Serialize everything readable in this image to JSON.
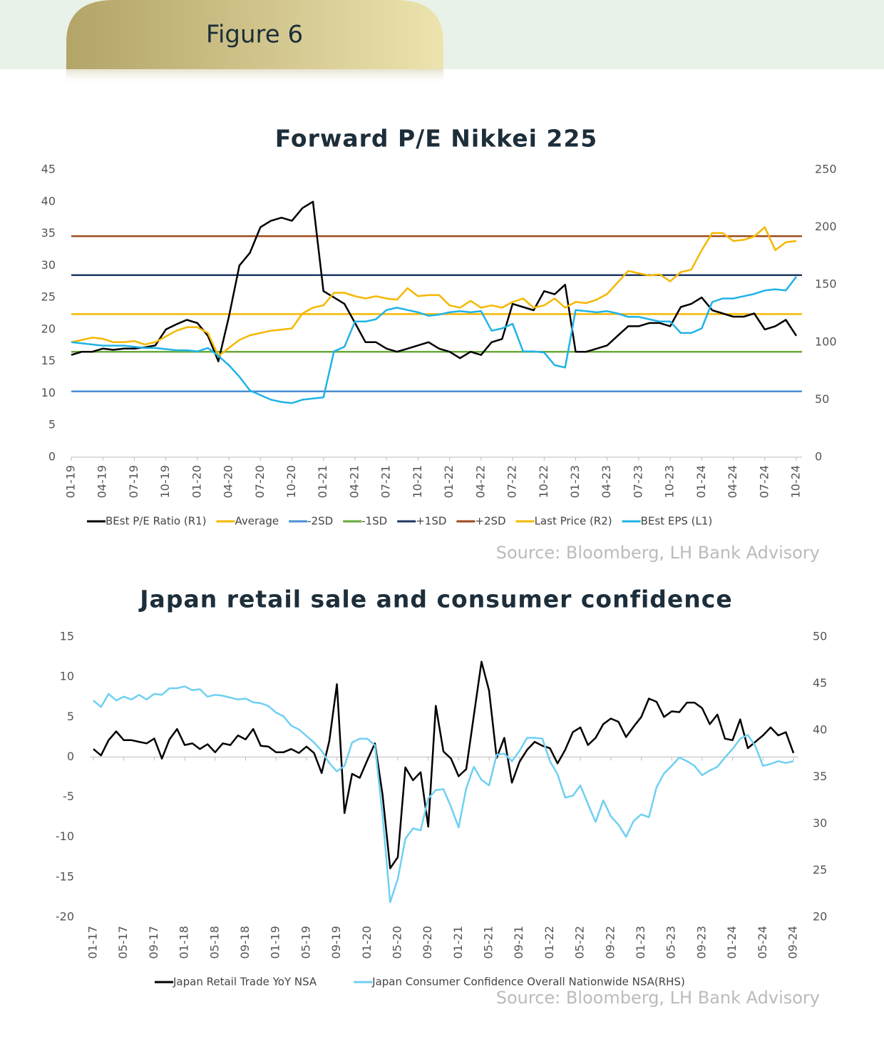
{
  "header": {
    "title": "Figure 6"
  },
  "chart_data": [
    {
      "type": "line",
      "title": "Forward P/E Nikkei 225",
      "source": "Source: Bloomberg,  LH Bank Advisory",
      "categories": [
        "01-19",
        null,
        null,
        "04-19",
        null,
        null,
        "07-19",
        null,
        null,
        "10-19",
        null,
        null,
        "01-20",
        null,
        null,
        "04-20",
        null,
        null,
        "07-20",
        null,
        null,
        "10-20",
        null,
        null,
        "01-21",
        null,
        null,
        "04-21",
        null,
        null,
        "07-21",
        null,
        null,
        "10-21",
        null,
        null,
        "01-22",
        null,
        null,
        "04-22",
        null,
        null,
        "07-22",
        null,
        null,
        "10-22",
        null,
        null,
        "01-23",
        null,
        null,
        "04-23",
        null,
        null,
        "07-23",
        null,
        null,
        "10-23",
        null,
        null,
        "01-24",
        null,
        null,
        "04-24",
        null,
        null,
        "07-24",
        null,
        null,
        "10-24"
      ],
      "ylim": [
        0,
        45
      ],
      "yticks": [
        0,
        5,
        10,
        15,
        20,
        25,
        30,
        35,
        40,
        45
      ],
      "y2lim": [
        0,
        250
      ],
      "y2ticks": [
        0,
        50,
        100,
        150,
        200,
        250
      ],
      "series": [
        {
          "name": "BEst P/E Ratio (R1)",
          "color": "#000000",
          "values": [
            16,
            16.5,
            16.5,
            17,
            16.8,
            17,
            17,
            17.2,
            17.5,
            20,
            20.8,
            21.5,
            21,
            19,
            15,
            22,
            30,
            32,
            36,
            37,
            37.5,
            37,
            39,
            40,
            26,
            25,
            24,
            21,
            18,
            18,
            17,
            16.5,
            17,
            17.5,
            18,
            17,
            16.5,
            15.5,
            16.5,
            16,
            18,
            18.5,
            24,
            23.5,
            23,
            26,
            25.5,
            27,
            16.5,
            16.5,
            17,
            17.5,
            19,
            20.5,
            20.5,
            21,
            21,
            20.5,
            23.5,
            24,
            25,
            23,
            22.5,
            22,
            22,
            22.5,
            20,
            20.5,
            21.5,
            19
          ]
        },
        {
          "name": "Average",
          "color": "#f5b800",
          "value": 22.4
        },
        {
          "name": "-2SD",
          "color": "#4a8fd4",
          "value": 10.3
        },
        {
          "name": "-1SD",
          "color": "#6aaa3a",
          "value": 16.5
        },
        {
          "name": "+1SD",
          "color": "#1f3864",
          "value": 28.5
        },
        {
          "name": "+2SD",
          "color": "#9c4a1a",
          "value": 34.6
        },
        {
          "name": "Last Price (R2)",
          "color": "#f5b800",
          "axis": "y2",
          "values": [
            100,
            102,
            104,
            103,
            100,
            100,
            101,
            98,
            100,
            105,
            110,
            113,
            113,
            108,
            88,
            95,
            102,
            106,
            108,
            110,
            111,
            112,
            125,
            130,
            132,
            143,
            143,
            140,
            138,
            140,
            138,
            137,
            147,
            140,
            141,
            141,
            132,
            130,
            136,
            130,
            132,
            130,
            135,
            138,
            130,
            132,
            138,
            130,
            135,
            134,
            137,
            142,
            152,
            162,
            160,
            158,
            159,
            153,
            161,
            163,
            180,
            195,
            195,
            188,
            189,
            192,
            200,
            180,
            187,
            188
          ]
        },
        {
          "name": "BEst EPS (L1)",
          "color": "#1fb3e6",
          "axis": "y2",
          "values": [
            100,
            99,
            98,
            97,
            97,
            97,
            96,
            95,
            95,
            94,
            93,
            93,
            92,
            95,
            88,
            80,
            70,
            58,
            54,
            50,
            48,
            47,
            50,
            51,
            52,
            92,
            96,
            118,
            118,
            120,
            128,
            130,
            128,
            126,
            123,
            124,
            126,
            127,
            126,
            127,
            110,
            112,
            116,
            92,
            92,
            91,
            80,
            78,
            128,
            127,
            126,
            127,
            125,
            122,
            122,
            120,
            118,
            118,
            108,
            108,
            112,
            135,
            138,
            138,
            140,
            142,
            145,
            146,
            145,
            157
          ]
        }
      ]
    },
    {
      "type": "line",
      "title": "Japan retail sale and consumer confidence",
      "source": "Source: Bloomberg,  LH Bank Advisory",
      "categories": [
        "01-17",
        null,
        null,
        null,
        "05-17",
        null,
        null,
        null,
        "09-17",
        null,
        null,
        null,
        "01-18",
        null,
        null,
        null,
        "05-18",
        null,
        null,
        null,
        "09-18",
        null,
        null,
        null,
        "01-19",
        null,
        null,
        null,
        "05-19",
        null,
        null,
        null,
        "09-19",
        null,
        null,
        null,
        "01-20",
        null,
        null,
        null,
        "05-20",
        null,
        null,
        null,
        "09-20",
        null,
        null,
        null,
        "01-21",
        null,
        null,
        null,
        "05-21",
        null,
        null,
        null,
        "09-21",
        null,
        null,
        null,
        "01-22",
        null,
        null,
        null,
        "05-22",
        null,
        null,
        null,
        "09-22",
        null,
        null,
        null,
        "01-23",
        null,
        null,
        null,
        "05-23",
        null,
        null,
        null,
        "09-23",
        null,
        null,
        null,
        "01-24",
        null,
        null,
        null,
        "05-24",
        null,
        null,
        null,
        "09-24"
      ],
      "ylim": [
        -20,
        15
      ],
      "yticks": [
        -20,
        -15,
        -10,
        -5,
        0,
        5,
        10,
        15
      ],
      "y2lim": [
        20,
        50
      ],
      "y2ticks": [
        20,
        25,
        30,
        35,
        40,
        45,
        50
      ],
      "series": [
        {
          "name": "Japan Retail Trade YoY NSA",
          "color": "#000000",
          "values": [
            1.0,
            0.2,
            2.1,
            3.2,
            2.1,
            2.1,
            1.9,
            1.7,
            2.3,
            -0.2,
            2.2,
            3.5,
            1.5,
            1.7,
            1.0,
            1.6,
            0.6,
            1.7,
            1.5,
            2.7,
            2.2,
            3.5,
            1.4,
            1.3,
            0.6,
            0.6,
            1.0,
            0.5,
            1.3,
            0.5,
            -2.0,
            2.0,
            9.1,
            -7.0,
            -2.1,
            -2.6,
            -0.4,
            1.7,
            -4.7,
            -13.9,
            -12.5,
            -1.3,
            -2.9,
            -1.9,
            -8.7,
            6.4,
            0.7,
            -0.2,
            -2.4,
            -1.5,
            5.2,
            11.9,
            8.3,
            -0.1,
            2.4,
            -3.2,
            -0.6,
            0.9,
            1.9,
            1.4,
            1.1,
            -0.8,
            0.9,
            3.1,
            3.7,
            1.5,
            2.4,
            4.1,
            4.8,
            4.4,
            2.5,
            3.8,
            5.0,
            7.3,
            6.9,
            5.0,
            5.7,
            5.6,
            6.8,
            6.8,
            6.1,
            4.1,
            5.3,
            2.3,
            2.1,
            4.7,
            1.1,
            1.9,
            2.7,
            3.7,
            2.7,
            3.1,
            0.5
          ]
        },
        {
          "name": "Japan Consumer Confidence Overall Nationwide NSA(RHS)",
          "color": "#6fd0f2",
          "axis": "y2",
          "values": [
            43.2,
            42.5,
            43.9,
            43.2,
            43.6,
            43.3,
            43.8,
            43.3,
            43.9,
            43.8,
            44.5,
            44.5,
            44.7,
            44.3,
            44.4,
            43.6,
            43.8,
            43.7,
            43.5,
            43.3,
            43.4,
            43.0,
            42.9,
            42.6,
            41.9,
            41.5,
            40.5,
            40.1,
            39.4,
            38.7,
            37.8,
            36.5,
            35.6,
            36.2,
            38.7,
            39.1,
            39.1,
            38.4,
            30.9,
            21.6,
            24.1,
            28.4,
            29.5,
            29.3,
            32.7,
            33.6,
            33.7,
            31.8,
            29.6,
            33.8,
            36.1,
            34.7,
            34.1,
            37.4,
            37.5,
            36.7,
            37.8,
            39.2,
            39.2,
            39.1,
            36.7,
            35.3,
            32.8,
            33.0,
            34.1,
            32.1,
            30.2,
            32.5,
            30.8,
            29.9,
            28.6,
            30.3,
            31.0,
            30.7,
            33.9,
            35.4,
            36.2,
            37.1,
            36.7,
            36.2,
            35.2,
            35.7,
            36.1,
            37.1,
            38.0,
            39.1,
            39.5,
            38.3,
            36.2,
            36.4,
            36.7,
            36.5,
            36.7
          ]
        }
      ]
    }
  ]
}
